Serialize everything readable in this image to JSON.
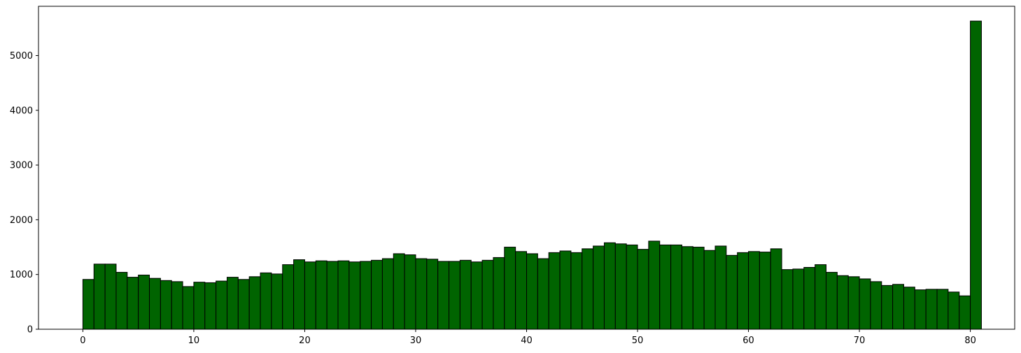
{
  "chart_data": {
    "type": "bar",
    "subtype": "histogram",
    "title": "",
    "xlabel": "",
    "ylabel": "",
    "bin_width": 1,
    "bin_start": 0,
    "xlim": [
      -4,
      84
    ],
    "ylim": [
      0,
      5900
    ],
    "xticks": [
      0,
      10,
      20,
      30,
      40,
      50,
      60,
      70,
      80
    ],
    "yticks": [
      0,
      1000,
      2000,
      3000,
      4000,
      5000
    ],
    "grid": false,
    "legend": "none",
    "bar_color": "#006400",
    "edge_color": "#000000",
    "values": [
      910,
      1190,
      1190,
      1040,
      950,
      990,
      930,
      890,
      870,
      780,
      860,
      850,
      880,
      950,
      910,
      960,
      1030,
      1010,
      1180,
      1270,
      1230,
      1250,
      1240,
      1250,
      1230,
      1240,
      1260,
      1290,
      1380,
      1360,
      1290,
      1280,
      1240,
      1240,
      1260,
      1230,
      1260,
      1310,
      1500,
      1420,
      1380,
      1290,
      1400,
      1430,
      1400,
      1470,
      1520,
      1580,
      1560,
      1540,
      1460,
      1610,
      1540,
      1540,
      1510,
      1500,
      1440,
      1520,
      1350,
      1400,
      1420,
      1410,
      1470,
      1090,
      1100,
      1130,
      1180,
      1040,
      980,
      960,
      920,
      870,
      800,
      820,
      770,
      720,
      730,
      730,
      680,
      610,
      5630
    ]
  }
}
